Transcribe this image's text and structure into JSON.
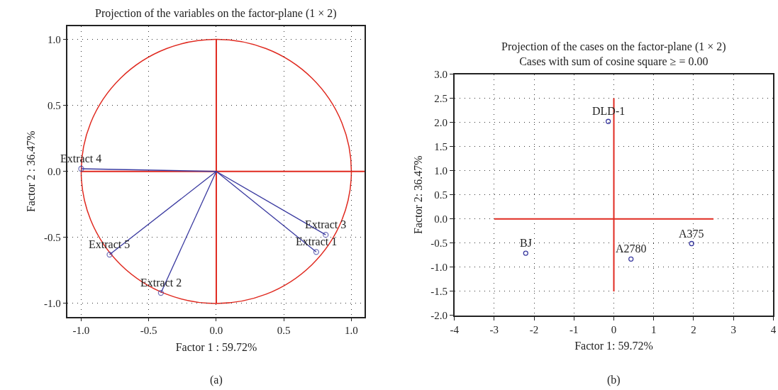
{
  "chart_data": [
    {
      "type": "line",
      "title": "Projection of the variables on the factor-plane (1 × 2)",
      "xlabel": "Factor 1 : 59.72%",
      "ylabel": "Factor 2 : 36.47%",
      "xlim": [
        -1.1,
        1.1
      ],
      "ylim": [
        -1.1,
        1.1
      ],
      "xticks": [
        {
          "value": -1,
          "label": "-1.0"
        },
        {
          "value": -0.5,
          "label": "-0.5"
        },
        {
          "value": 0,
          "label": "0.0"
        },
        {
          "value": 0.5,
          "label": "0.5"
        },
        {
          "value": 1,
          "label": "1.0"
        }
      ],
      "yticks": [
        {
          "value": -1,
          "label": "-1.0"
        },
        {
          "value": -0.5,
          "label": "-0.5"
        },
        {
          "value": 0,
          "label": "0.0"
        },
        {
          "value": 0.5,
          "label": "0.5"
        },
        {
          "value": 1,
          "label": "1.0"
        }
      ],
      "grid": true,
      "annotations": [
        "(a)"
      ],
      "series": [
        {
          "color": "#e02a20",
          "marker": "none",
          "x": [
            -1,
            1.1
          ],
          "values": [
            0,
            0
          ]
        },
        {
          "color": "#e02a20",
          "marker": "none",
          "x": [
            0,
            0
          ],
          "values": [
            -1,
            1
          ]
        },
        {
          "name": "Extract 4",
          "color": "#3a3aa0",
          "marker": "circle",
          "x": [
            0,
            -1.0
          ],
          "values": [
            0,
            0.02
          ]
        },
        {
          "name": "Extract 5",
          "color": "#3a3aa0",
          "marker": "circle",
          "x": [
            0,
            -0.79
          ],
          "values": [
            0,
            -0.63
          ]
        },
        {
          "name": "Extract 2",
          "color": "#3a3aa0",
          "marker": "circle",
          "x": [
            0,
            -0.41
          ],
          "values": [
            0,
            -0.92
          ]
        },
        {
          "name": "Extract 3",
          "color": "#3a3aa0",
          "marker": "circle",
          "x": [
            0,
            0.81
          ],
          "values": [
            0,
            -0.48
          ]
        },
        {
          "name": "Extract 1",
          "color": "#3a3aa0",
          "marker": "circle",
          "x": [
            0,
            0.74
          ],
          "values": [
            0,
            -0.61
          ]
        }
      ]
    },
    {
      "type": "scatter",
      "title": "Projection of the cases on the factor-plane (1 × 2)",
      "subtitle": "Cases with sum of cosine square ≥ = 0.00",
      "xlabel": "Factor 1: 59.72%",
      "ylabel": "Factor 2: 36.47%",
      "xlim": [
        -4,
        4
      ],
      "ylim": [
        -2,
        3
      ],
      "xticks": [
        -4,
        -3,
        -2,
        -1,
        0,
        1,
        2,
        3,
        4
      ],
      "yticks": [
        {
          "value": -2,
          "label": "-2.0"
        },
        {
          "value": -1.5,
          "label": "-1.5"
        },
        {
          "value": -1,
          "label": "-1.0"
        },
        {
          "value": -0.5,
          "label": "-0.5"
        },
        {
          "value": 0,
          "label": "0.0"
        },
        {
          "value": 0.5,
          "label": "0.5"
        },
        {
          "value": 1,
          "label": "1.0"
        },
        {
          "value": 1.5,
          "label": "1.5"
        },
        {
          "value": 2,
          "label": "2.0"
        },
        {
          "value": 2.5,
          "label": "2.5"
        },
        {
          "value": 3,
          "label": "3.0"
        }
      ],
      "grid": true,
      "annotations": [
        "(b)"
      ],
      "series": [
        {
          "type": "line",
          "color": "#e02a20",
          "marker": "none",
          "x": [
            -3,
            2.5
          ],
          "values": [
            0,
            0
          ]
        },
        {
          "type": "line",
          "color": "#e02a20",
          "marker": "none",
          "x": [
            0,
            0
          ],
          "values": [
            -1.5,
            2.5
          ]
        },
        {
          "name": "DLD-1",
          "color": "#3a3aa0",
          "marker": "circle",
          "x": [
            -0.14
          ],
          "values": [
            2.02
          ]
        },
        {
          "name": "BJ",
          "color": "#3a3aa0",
          "marker": "circle",
          "x": [
            -2.21
          ],
          "values": [
            -0.71
          ]
        },
        {
          "name": "A2780",
          "color": "#3a3aa0",
          "marker": "circle",
          "x": [
            0.43
          ],
          "values": [
            -0.83
          ]
        },
        {
          "name": "A375",
          "color": "#3a3aa0",
          "marker": "circle",
          "x": [
            1.95
          ],
          "values": [
            -0.51
          ]
        }
      ]
    }
  ]
}
